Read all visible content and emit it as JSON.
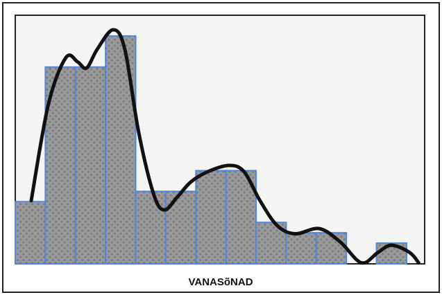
{
  "chart_data": {
    "type": "histogram",
    "xlabel": "VANASõNAD",
    "bins": [
      0,
      1,
      2,
      3,
      4,
      5,
      6,
      7,
      8,
      9,
      10,
      11,
      12,
      13
    ],
    "values": [
      6,
      19,
      19,
      22,
      7,
      7,
      9,
      9,
      4,
      3,
      3,
      0,
      2
    ],
    "color": "#8f8f8f",
    "edgecolor": "#4f86e0",
    "curve": {
      "color": "#111111",
      "x": [
        0.53,
        1.1,
        1.68,
        2.07,
        2.37,
        2.72,
        3.25,
        3.64,
        4.1,
        4.6,
        4.95,
        5.37,
        5.83,
        6.4,
        7.1,
        7.6,
        8.13,
        8.7,
        9.3,
        10.1,
        10.8,
        11.5,
        12.05,
        12.5,
        13.1,
        13.4
      ],
      "y": [
        6.1,
        15.4,
        19.9,
        19.5,
        18.9,
        20.7,
        22.6,
        20.7,
        12.7,
        6.7,
        5.2,
        6.4,
        7.9,
        8.9,
        9.5,
        8.9,
        6.1,
        3.7,
        2.9,
        3.4,
        2.1,
        0.1,
        1.1,
        1.8,
        1.1,
        0.1
      ]
    },
    "xlim": [
      0,
      13.6
    ],
    "ylim": [
      0,
      24
    ]
  }
}
